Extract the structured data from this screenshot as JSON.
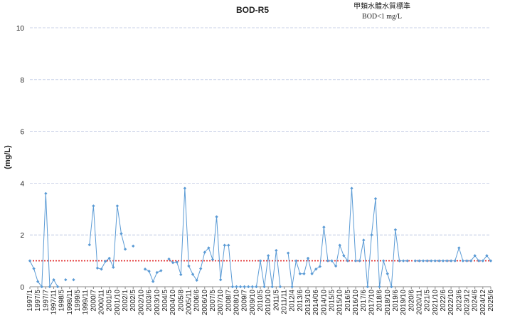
{
  "chart_data": {
    "type": "line",
    "title": "BOD-R5",
    "annotation": [
      "甲類水體水質標準",
      "BOD<1 mg/L"
    ],
    "y_label": "(mg/L)",
    "categories": [
      "1997/1",
      null,
      "1997/5",
      null,
      "1997/7",
      null,
      "1997/11",
      null,
      "1998/5",
      null,
      "1998/11",
      null,
      "1999/5",
      null,
      "1999/11",
      null,
      "2000/7",
      null,
      "2000/11",
      null,
      "2001/5",
      null,
      "2001/10",
      null,
      "2002/1",
      null,
      "2002/5",
      null,
      "2002/10",
      null,
      "2003/6",
      null,
      "2003/10",
      null,
      "2004/5",
      null,
      "2004/10",
      null,
      "2005/8",
      null,
      "2005/11",
      null,
      "2006/6",
      null,
      "2006/10",
      null,
      "2007/5",
      null,
      "2007/10",
      null,
      "2008/7",
      null,
      "2008/10",
      null,
      "2009/7",
      null,
      "2009/10",
      null,
      "2010/5",
      null,
      "2010/10",
      null,
      "2011/5",
      null,
      "2011/11",
      null,
      "2012/4",
      null,
      "2013/6",
      null,
      "2013/10",
      null,
      "2014/06",
      null,
      "2014/10",
      null,
      "2015/5",
      null,
      "2015/10",
      null,
      "2016/5",
      null,
      "2016/10",
      null,
      "2017/6",
      null,
      "2017/10",
      null,
      "2018/6",
      null,
      "2018/10",
      null,
      "2019/6",
      null,
      "2019/10",
      null,
      "2020/6",
      null,
      "2020/11",
      null,
      "2021/5",
      null,
      "2021/10",
      null,
      "2022/6",
      null,
      "2022/10",
      null,
      "2023/6",
      null,
      "2023/12",
      null,
      "2024/6",
      null,
      "2024/12",
      null,
      "2025/6"
    ],
    "series": [
      {
        "color": "#5b9bd5",
        "values": [
          1.0,
          0.7,
          0.2,
          0,
          3.6,
          0,
          0.27,
          0,
          null,
          0.27,
          null,
          0.27,
          null,
          null,
          null,
          1.62,
          3.12,
          0.72,
          0.68,
          0.98,
          1.1,
          0.75,
          3.12,
          2.05,
          1.45,
          null,
          1.57,
          null,
          null,
          0.68,
          0.6,
          0.2,
          0.55,
          0.62,
          null,
          1.07,
          0.93,
          0.95,
          0.47,
          3.8,
          0.8,
          0.48,
          0.25,
          0.7,
          1.33,
          1.5,
          1.05,
          2.7,
          0.27,
          1.6,
          1.6,
          0,
          0,
          0,
          0,
          0,
          0,
          0,
          1.0,
          0,
          1.2,
          0,
          1.4,
          0,
          null,
          1.3,
          0,
          1.0,
          0.5,
          0.5,
          1.1,
          0.5,
          0.68,
          0.78,
          2.3,
          1.0,
          1.0,
          0.8,
          1.6,
          1.2,
          1.0,
          3.8,
          1.0,
          1.0,
          1.8,
          0,
          2.0,
          3.4,
          0,
          1.0,
          0.5,
          0,
          2.2,
          1.0,
          1.0,
          1.0,
          null,
          1.0,
          1.0,
          1.0,
          1.0,
          1.0,
          1.0,
          1.0,
          1.0,
          1.0,
          1.0,
          1.0,
          1.5,
          1.0,
          1.0,
          1.0,
          1.2,
          1.0,
          1.0,
          1.2,
          1.0
        ]
      }
    ],
    "reference_line": {
      "value": 1,
      "color": "#e02020"
    },
    "ylim": [
      0,
      10
    ],
    "yticks": [
      0,
      2,
      4,
      6,
      8,
      10
    ],
    "grid": true
  }
}
